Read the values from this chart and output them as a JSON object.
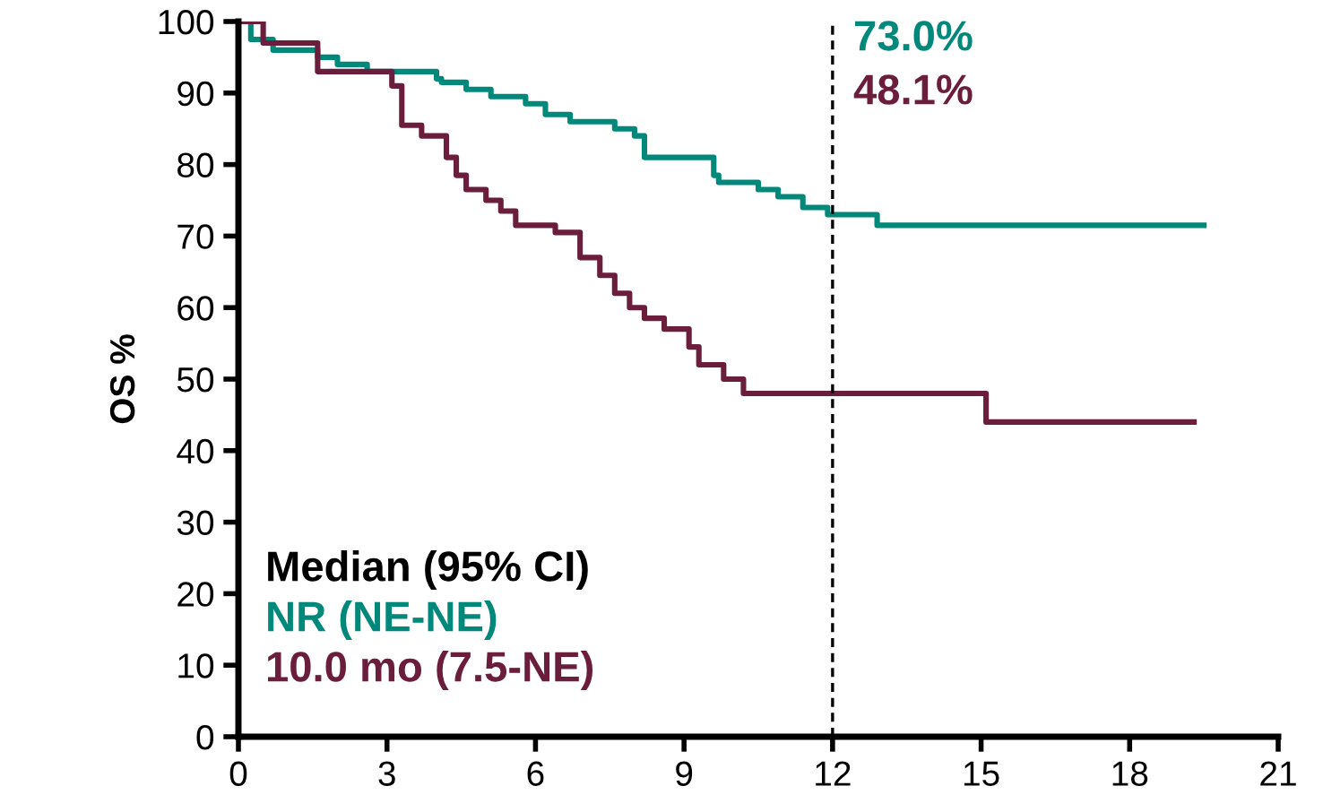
{
  "chart_data": {
    "type": "step",
    "ylabel": "OS %",
    "xlim": [
      0,
      21
    ],
    "xticks": [
      0,
      3,
      6,
      9,
      12,
      15,
      18,
      21
    ],
    "ylim": [
      0,
      100
    ],
    "yticks": [
      0,
      10,
      20,
      30,
      40,
      50,
      60,
      70,
      80,
      90,
      100
    ],
    "grid": false,
    "legend": false,
    "series": [
      {
        "color": "#00887a",
        "x": [
          0,
          0.25,
          0.7,
          1.6,
          2.0,
          2.6,
          4.0,
          4.1,
          4.6,
          5.1,
          5.8,
          6.2,
          6.7,
          7.6,
          8.0,
          8.2,
          9.6,
          9.7,
          10.5,
          10.9,
          11.4,
          11.9,
          12.9,
          19.5
        ],
        "values": [
          100,
          97.5,
          96,
          95,
          94,
          93,
          92,
          91.5,
          90.5,
          89.5,
          88.5,
          87,
          86,
          85,
          84,
          81,
          78.5,
          77.5,
          76.5,
          75.5,
          74,
          73,
          71.5,
          71.5
        ]
      },
      {
        "color": "#6b1d3c",
        "x": [
          0,
          0.5,
          1.6,
          3.1,
          3.3,
          3.7,
          4.2,
          4.4,
          4.6,
          5.0,
          5.3,
          5.6,
          6.4,
          6.9,
          7.3,
          7.6,
          7.9,
          8.2,
          8.6,
          9.1,
          9.3,
          9.8,
          10.2,
          15.1,
          19.3
        ],
        "values": [
          100,
          97,
          93,
          91,
          85.5,
          84,
          81,
          78.5,
          76.5,
          75,
          73.5,
          71.5,
          70.5,
          67,
          64.5,
          62,
          60,
          58.5,
          57,
          54.5,
          52,
          50,
          48,
          44,
          44
        ]
      }
    ],
    "ref_lines": [
      {
        "axis": "x",
        "value": 12,
        "color": "#000000",
        "line_style": "dashed"
      }
    ],
    "annotations": [
      "73.0%",
      "48.1%",
      "Median (95% CI)",
      "NR (NE-NE)",
      "10.0 mo (7.5-NE)"
    ]
  }
}
